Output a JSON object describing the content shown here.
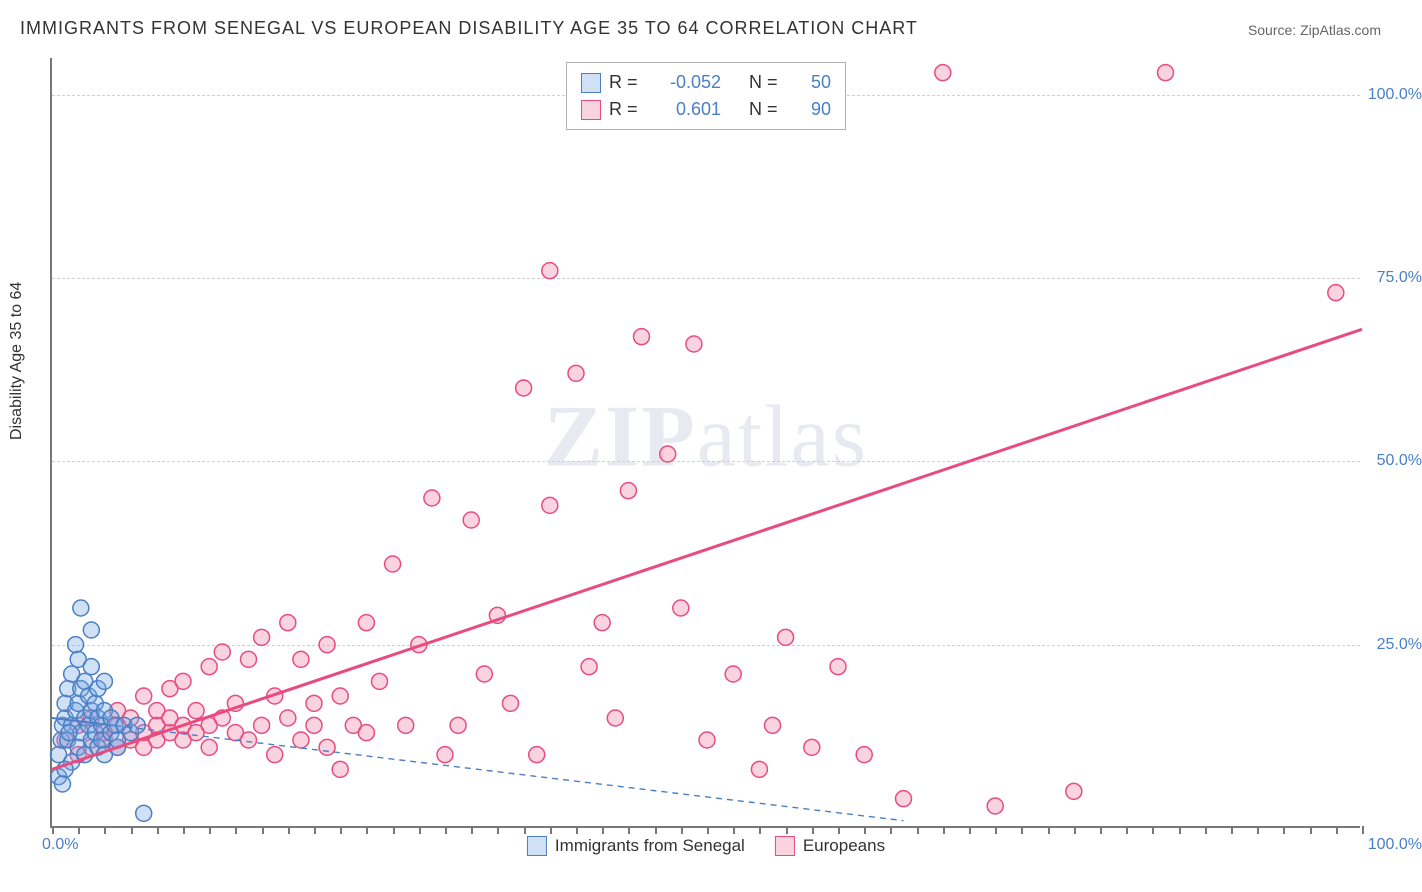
{
  "title": "IMMIGRANTS FROM SENEGAL VS EUROPEAN DISABILITY AGE 35 TO 64 CORRELATION CHART",
  "source_label": "Source:",
  "source_value": "ZipAtlas.com",
  "ylabel": "Disability Age 35 to 64",
  "watermark": {
    "bold": "ZIP",
    "rest": "atlas"
  },
  "chart": {
    "type": "scatter",
    "xlim": [
      0,
      100
    ],
    "ylim": [
      0,
      105
    ],
    "y_ticks": [
      25,
      50,
      75,
      100
    ],
    "y_tick_labels": [
      "25.0%",
      "50.0%",
      "75.0%",
      "100.0%"
    ],
    "x_tick_step_minor": 2,
    "x_label_min": "0.0%",
    "x_label_max": "100.0%",
    "grid_color": "#d0d0d0",
    "axis_color": "#777777",
    "tick_label_color": "#4a7fc4",
    "background_color": "#ffffff",
    "marker_radius": 8,
    "marker_stroke_width": 1.5,
    "series": {
      "senegal": {
        "label": "Immigrants from Senegal",
        "fill": "rgba(120,170,230,0.35)",
        "stroke": "#4a7fc4",
        "R": "-0.052",
        "N": "50",
        "trend": {
          "x1": 0,
          "y1": 15,
          "x2": 65,
          "y2": 1,
          "solid_until_x": 4,
          "dash": "6,5",
          "width": 2
        },
        "points": [
          [
            0.5,
            7
          ],
          [
            0.5,
            10
          ],
          [
            0.7,
            12
          ],
          [
            0.8,
            14
          ],
          [
            1.0,
            15
          ],
          [
            1.0,
            17
          ],
          [
            1.2,
            12
          ],
          [
            1.2,
            19
          ],
          [
            1.5,
            9
          ],
          [
            1.5,
            14
          ],
          [
            1.5,
            21
          ],
          [
            1.8,
            16
          ],
          [
            1.8,
            25
          ],
          [
            2.0,
            11
          ],
          [
            2.0,
            17
          ],
          [
            2.0,
            23
          ],
          [
            2.2,
            13
          ],
          [
            2.2,
            19
          ],
          [
            2.2,
            30
          ],
          [
            2.5,
            10
          ],
          [
            2.5,
            15
          ],
          [
            2.5,
            20
          ],
          [
            2.8,
            14
          ],
          [
            2.8,
            18
          ],
          [
            3.0,
            12
          ],
          [
            3.0,
            16
          ],
          [
            3.0,
            22
          ],
          [
            3.0,
            27
          ],
          [
            3.3,
            13
          ],
          [
            3.3,
            17
          ],
          [
            3.5,
            11
          ],
          [
            3.5,
            15
          ],
          [
            3.5,
            19
          ],
          [
            3.8,
            14
          ],
          [
            3.8,
            12
          ],
          [
            4.0,
            16
          ],
          [
            4.0,
            10
          ],
          [
            4.0,
            20
          ],
          [
            4.5,
            13
          ],
          [
            4.5,
            15
          ],
          [
            4.8,
            14
          ],
          [
            5.0,
            11
          ],
          [
            5.0,
            12
          ],
          [
            5.5,
            14
          ],
          [
            6.0,
            13
          ],
          [
            6.5,
            14
          ],
          [
            7.0,
            2
          ],
          [
            1.0,
            8
          ],
          [
            0.8,
            6
          ],
          [
            1.3,
            13
          ]
        ]
      },
      "europeans": {
        "label": "Europeans",
        "fill": "rgba(240,130,170,0.35)",
        "stroke": "#e84c7f",
        "R": "0.601",
        "N": "90",
        "trend": {
          "x1": 0,
          "y1": 8,
          "x2": 100,
          "y2": 68,
          "solid_until_x": 100,
          "width": 3
        },
        "points": [
          [
            1,
            12
          ],
          [
            2,
            10
          ],
          [
            2,
            14
          ],
          [
            3,
            11
          ],
          [
            3,
            15
          ],
          [
            4,
            12
          ],
          [
            4,
            13
          ],
          [
            5,
            11
          ],
          [
            5,
            14
          ],
          [
            5,
            16
          ],
          [
            6,
            12
          ],
          [
            6,
            15
          ],
          [
            7,
            13
          ],
          [
            7,
            11
          ],
          [
            7,
            18
          ],
          [
            8,
            14
          ],
          [
            8,
            12
          ],
          [
            8,
            16
          ],
          [
            9,
            13
          ],
          [
            9,
            15
          ],
          [
            9,
            19
          ],
          [
            10,
            12
          ],
          [
            10,
            14
          ],
          [
            10,
            20
          ],
          [
            11,
            13
          ],
          [
            11,
            16
          ],
          [
            12,
            14
          ],
          [
            12,
            11
          ],
          [
            12,
            22
          ],
          [
            13,
            15
          ],
          [
            13,
            24
          ],
          [
            14,
            13
          ],
          [
            14,
            17
          ],
          [
            15,
            23
          ],
          [
            15,
            12
          ],
          [
            16,
            14
          ],
          [
            16,
            26
          ],
          [
            17,
            18
          ],
          [
            17,
            10
          ],
          [
            18,
            15
          ],
          [
            18,
            28
          ],
          [
            19,
            23
          ],
          [
            19,
            12
          ],
          [
            20,
            17
          ],
          [
            20,
            14
          ],
          [
            21,
            25
          ],
          [
            21,
            11
          ],
          [
            22,
            18
          ],
          [
            22,
            8
          ],
          [
            23,
            14
          ],
          [
            24,
            28
          ],
          [
            24,
            13
          ],
          [
            25,
            20
          ],
          [
            26,
            36
          ],
          [
            27,
            14
          ],
          [
            28,
            25
          ],
          [
            29,
            45
          ],
          [
            30,
            10
          ],
          [
            31,
            14
          ],
          [
            32,
            42
          ],
          [
            33,
            21
          ],
          [
            34,
            29
          ],
          [
            35,
            17
          ],
          [
            36,
            60
          ],
          [
            37,
            10
          ],
          [
            38,
            76
          ],
          [
            38,
            44
          ],
          [
            40,
            62
          ],
          [
            41,
            22
          ],
          [
            42,
            28
          ],
          [
            43,
            15
          ],
          [
            44,
            46
          ],
          [
            45,
            67
          ],
          [
            47,
            51
          ],
          [
            48,
            30
          ],
          [
            49,
            66
          ],
          [
            50,
            12
          ],
          [
            52,
            21
          ],
          [
            54,
            8
          ],
          [
            55,
            14
          ],
          [
            56,
            26
          ],
          [
            58,
            11
          ],
          [
            60,
            22
          ],
          [
            62,
            10
          ],
          [
            65,
            4
          ],
          [
            68,
            103
          ],
          [
            72,
            3
          ],
          [
            78,
            5
          ],
          [
            85,
            103
          ],
          [
            98,
            73
          ]
        ]
      }
    }
  },
  "stats_legend": {
    "R_label": "R =",
    "N_label": "N ="
  }
}
